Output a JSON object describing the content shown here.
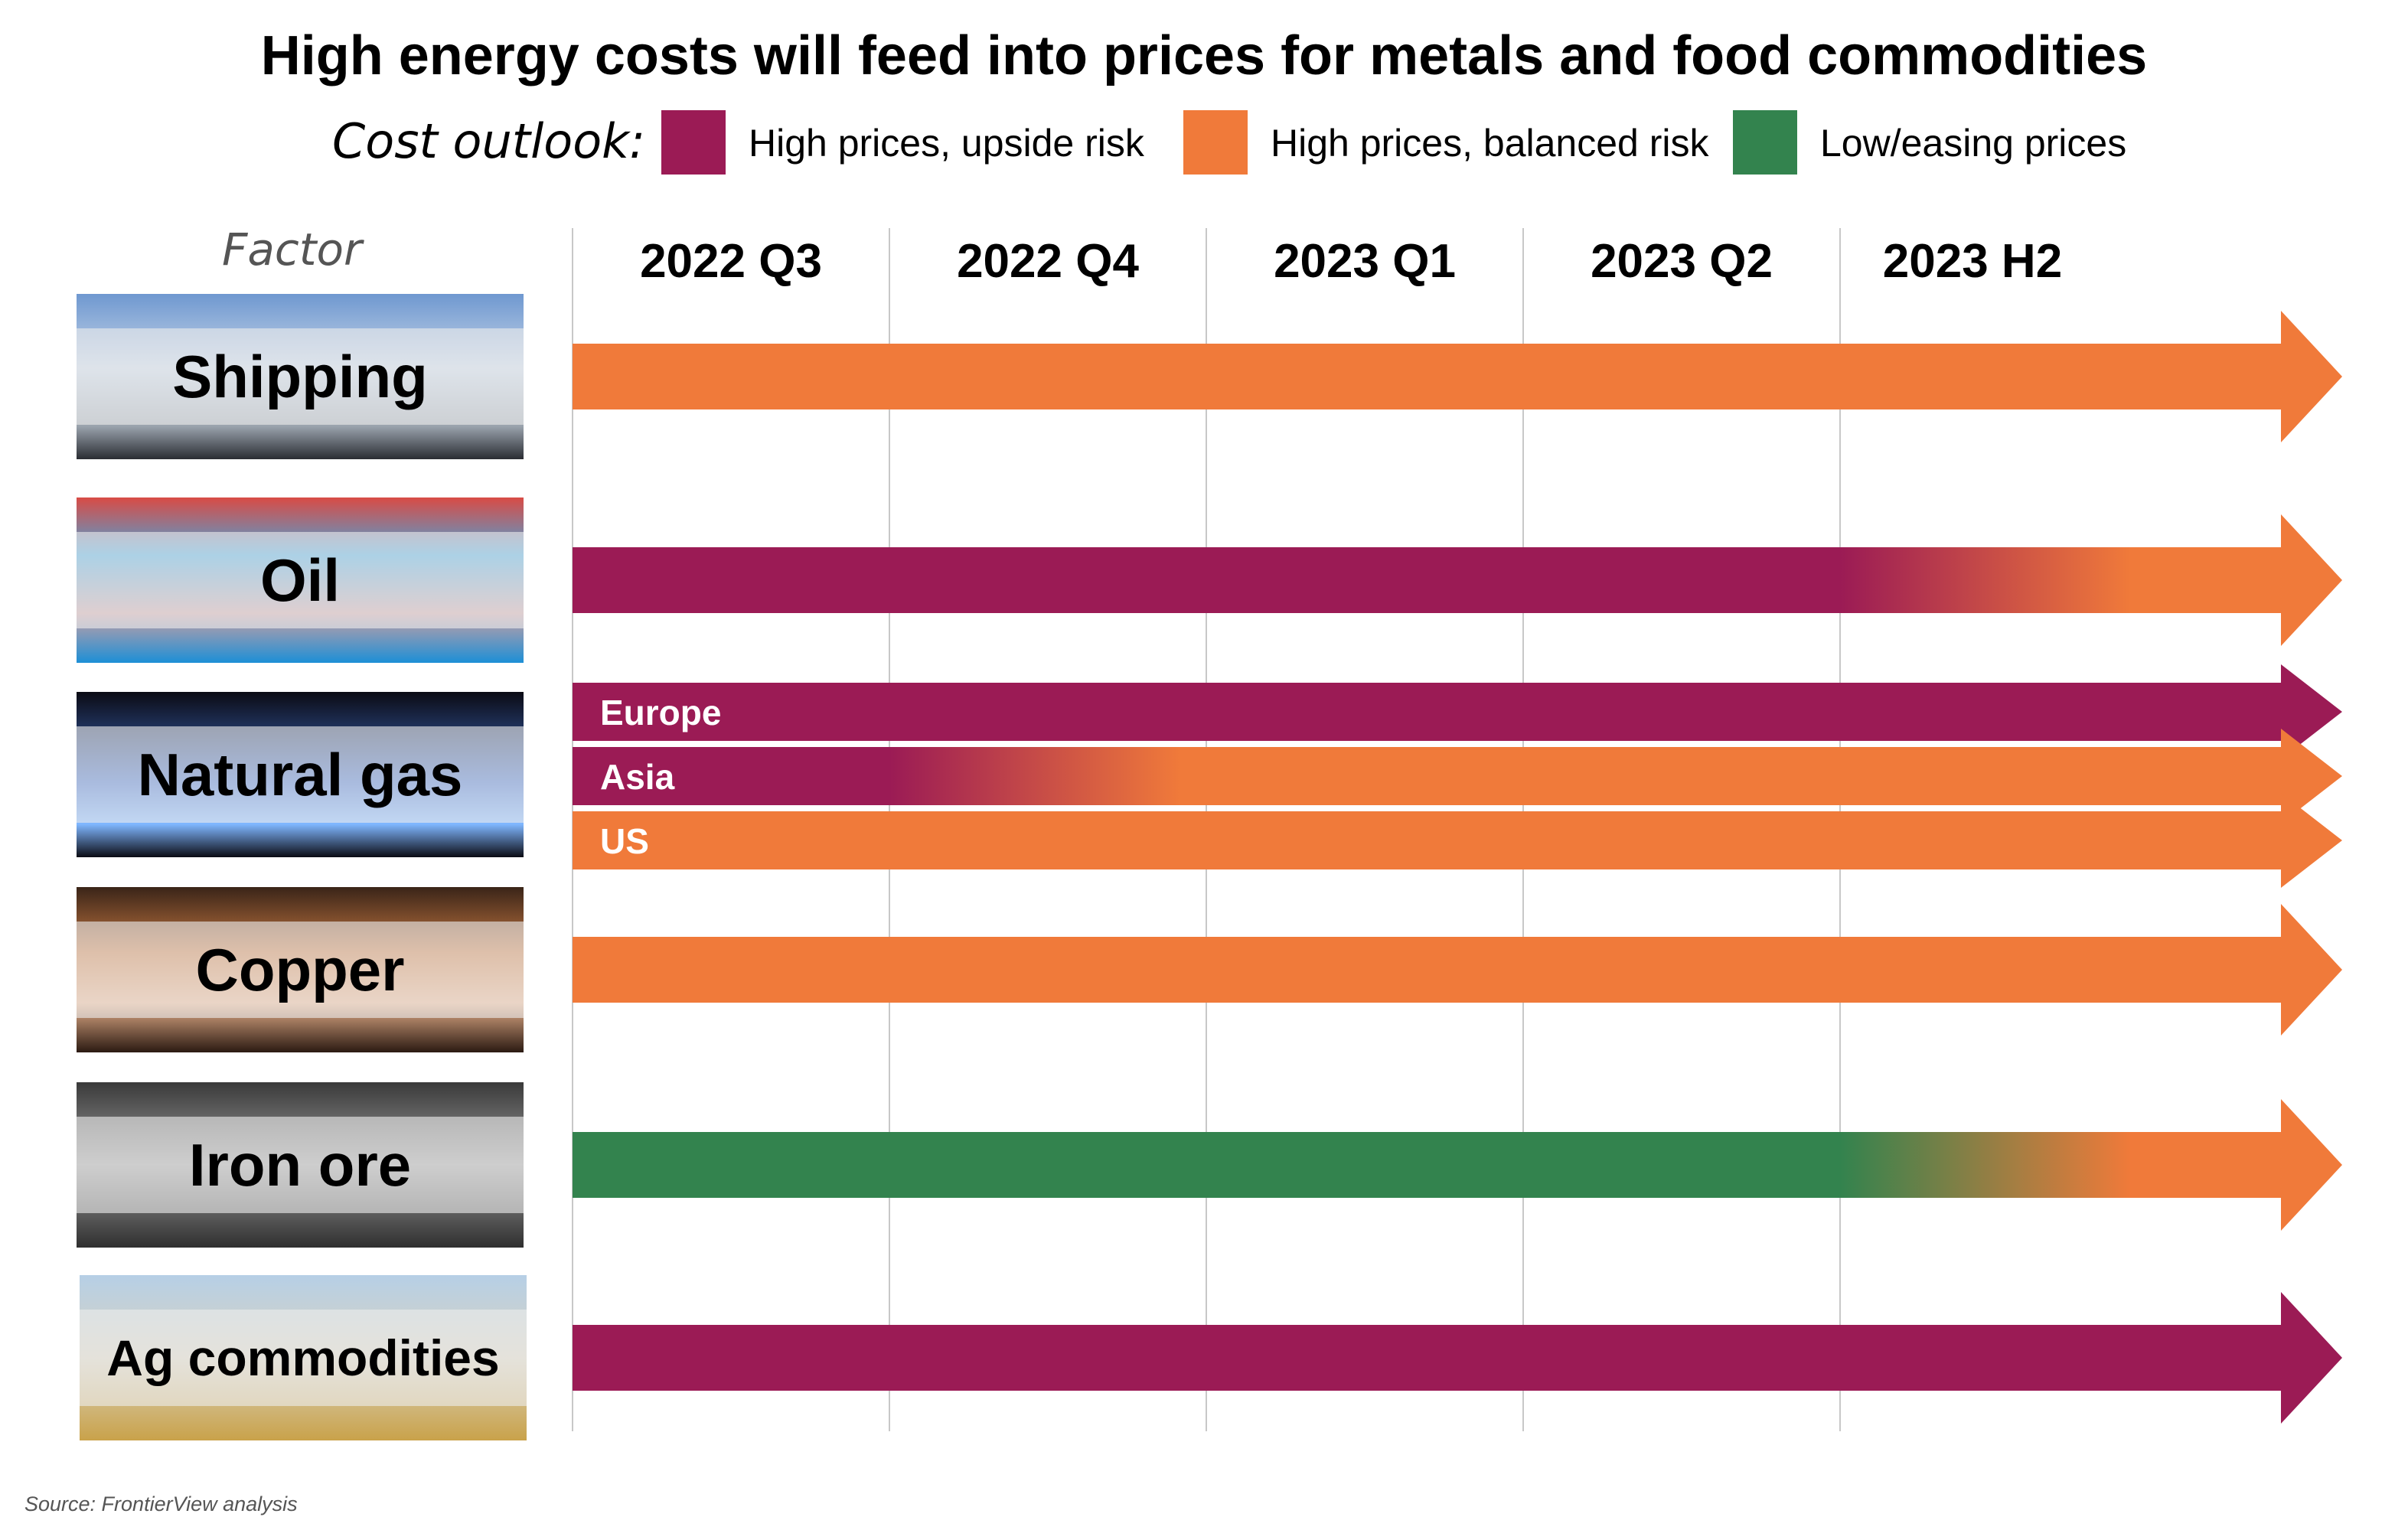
{
  "title": "High energy costs will feed into prices for metals and food commodities",
  "legend": {
    "lead": "Cost outlook:",
    "items": [
      {
        "key": "upside",
        "label": "High prices, upside risk",
        "color": "#9B1B55"
      },
      {
        "key": "balanced",
        "label": "High prices, balanced risk",
        "color": "#F07A3A"
      },
      {
        "key": "easing",
        "label": "Low/easing prices",
        "color": "#33834E"
      }
    ]
  },
  "factor_header": "Factor",
  "source": "Source: FrontierView analysis",
  "chart_data": {
    "type": "timeline",
    "title": "High energy costs will feed into prices for metals and food commodities",
    "periods": [
      "2022 Q3",
      "2022 Q4",
      "2023 Q1",
      "2023 Q2",
      "2023 H2"
    ],
    "categories": {
      "upside": "High prices, upside risk",
      "balanced": "High prices, balanced risk",
      "easing": "Low/easing prices"
    },
    "factors": [
      {
        "name": "Shipping",
        "series": [
          {
            "label": "",
            "outlook": [
              "balanced",
              "balanced",
              "balanced",
              "balanced",
              "balanced"
            ]
          }
        ]
      },
      {
        "name": "Oil",
        "series": [
          {
            "label": "",
            "outlook": [
              "upside",
              "upside",
              "upside",
              "upside",
              "balanced"
            ]
          }
        ]
      },
      {
        "name": "Natural gas",
        "series": [
          {
            "label": "Europe",
            "outlook": [
              "upside",
              "upside",
              "upside",
              "upside",
              "upside"
            ]
          },
          {
            "label": "Asia",
            "outlook": [
              "upside",
              "balanced",
              "balanced",
              "balanced",
              "balanced"
            ]
          },
          {
            "label": "US",
            "outlook": [
              "balanced",
              "balanced",
              "balanced",
              "balanced",
              "balanced"
            ]
          }
        ]
      },
      {
        "name": "Copper",
        "series": [
          {
            "label": "",
            "outlook": [
              "balanced",
              "balanced",
              "balanced",
              "balanced",
              "balanced"
            ]
          }
        ]
      },
      {
        "name": "Iron ore",
        "series": [
          {
            "label": "",
            "outlook": [
              "easing",
              "easing",
              "easing",
              "easing",
              "balanced"
            ]
          }
        ]
      },
      {
        "name": "Ag commodities",
        "series": [
          {
            "label": "",
            "outlook": [
              "upside",
              "upside",
              "upside",
              "upside",
              "upside"
            ]
          }
        ]
      }
    ]
  }
}
